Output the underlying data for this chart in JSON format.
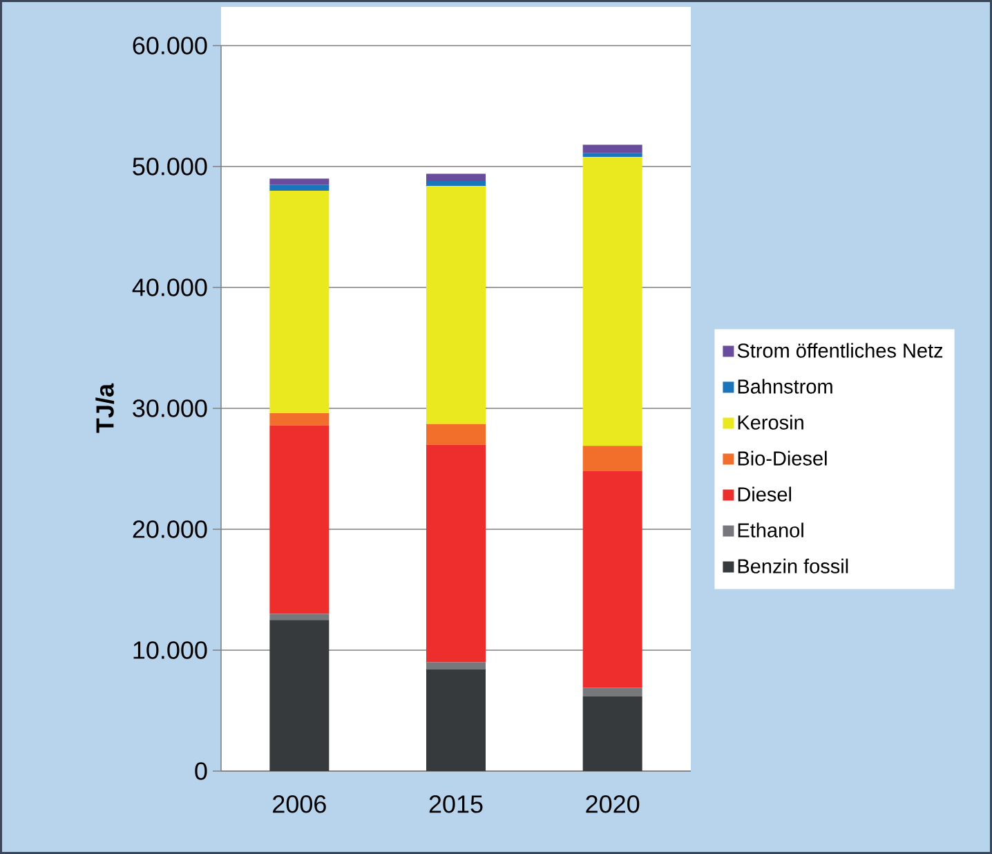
{
  "chart_data": {
    "type": "bar",
    "stacked": true,
    "ylabel": "TJ/a",
    "categories": [
      "2006",
      "2015",
      "2020"
    ],
    "series": [
      {
        "name": "Benzin fossil",
        "color": "#373a3d",
        "values": [
          12500,
          8400,
          6200
        ]
      },
      {
        "name": "Ethanol",
        "color": "#76787b",
        "values": [
          500,
          600,
          700
        ]
      },
      {
        "name": "Diesel",
        "color": "#ee2e2c",
        "values": [
          15600,
          18000,
          17900
        ]
      },
      {
        "name": "Bio-Diesel",
        "color": "#f26e2b",
        "values": [
          1000,
          1700,
          2100
        ]
      },
      {
        "name": "Kerosin",
        "color": "#eae81f",
        "values": [
          18400,
          19700,
          23900
        ]
      },
      {
        "name": "Bahnstrom",
        "color": "#1b75bb",
        "values": [
          500,
          400,
          300
        ]
      },
      {
        "name": "Strom öffentliches Netz",
        "color": "#6a4c9c",
        "values": [
          500,
          600,
          700
        ]
      }
    ],
    "ylim": [
      0,
      60000
    ],
    "yticks": [
      {
        "value": 0,
        "label": "0"
      },
      {
        "value": 10000,
        "label": "10.000"
      },
      {
        "value": 20000,
        "label": "20.000"
      },
      {
        "value": 30000,
        "label": "30.000"
      },
      {
        "value": 40000,
        "label": "40.000"
      },
      {
        "value": 50000,
        "label": "50.000"
      },
      {
        "value": 60000,
        "label": "60.000"
      }
    ],
    "grid": "y",
    "legend": "right"
  }
}
